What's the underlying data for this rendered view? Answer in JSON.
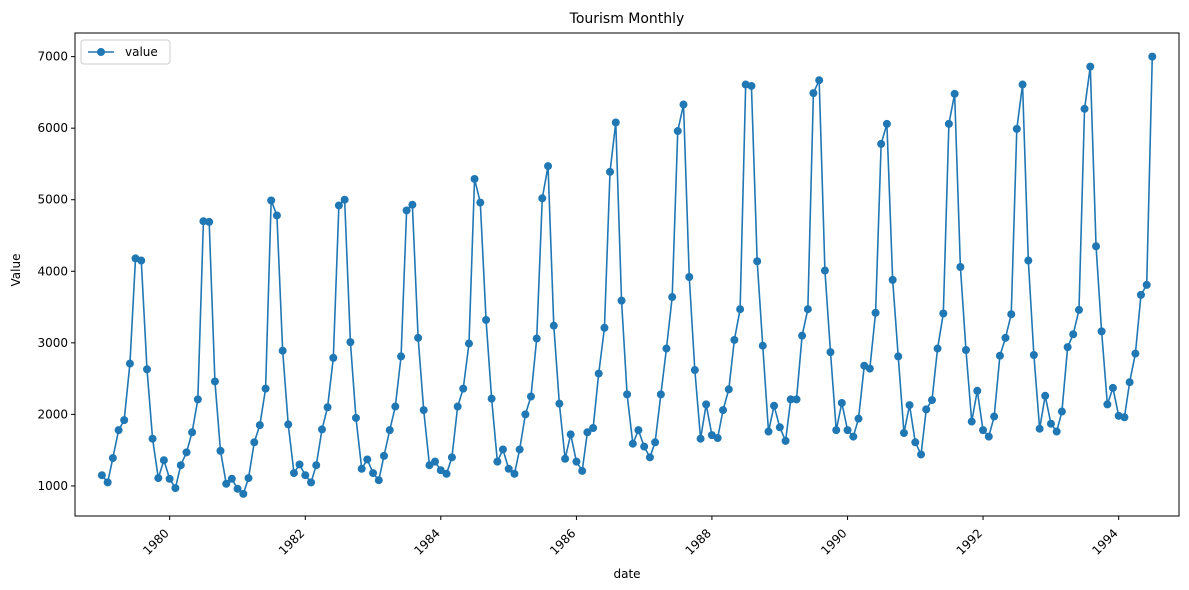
{
  "chart_data": {
    "type": "line",
    "title": "Tourism Monthly",
    "xlabel": "date",
    "ylabel": "Value",
    "x_start": "1979-01",
    "x_frequency": "monthly",
    "xlim": [
      "1978-08-09",
      "1994-11-22"
    ],
    "ylim": [
      580,
      7330
    ],
    "xticks": [
      1980,
      1982,
      1984,
      1986,
      1988,
      1990,
      1992,
      1994
    ],
    "yticks": [
      1000,
      2000,
      3000,
      4000,
      5000,
      6000,
      7000
    ],
    "legend": {
      "placement": "top-left",
      "entries": [
        "value"
      ]
    },
    "grid": false,
    "series": [
      {
        "name": "value",
        "color": "#1f77b4",
        "marker": "circle",
        "values": [
          1150,
          1050,
          1390,
          1780,
          1920,
          2710,
          4180,
          4150,
          2630,
          1660,
          1110,
          1360,
          1100,
          970,
          1290,
          1470,
          1750,
          2210,
          4700,
          4690,
          2460,
          1490,
          1030,
          1100,
          960,
          890,
          1110,
          1610,
          1850,
          2360,
          4990,
          4780,
          2890,
          1860,
          1180,
          1300,
          1150,
          1050,
          1290,
          1790,
          2100,
          2790,
          4920,
          5000,
          3010,
          1950,
          1240,
          1370,
          1180,
          1080,
          1420,
          1780,
          2110,
          2810,
          4850,
          4930,
          3070,
          2060,
          1290,
          1340,
          1220,
          1170,
          1400,
          2110,
          2360,
          2990,
          5290,
          4960,
          3320,
          2220,
          1340,
          1510,
          1240,
          1170,
          1510,
          2000,
          2250,
          3060,
          5020,
          5470,
          3240,
          2150,
          1380,
          1720,
          1340,
          1210,
          1750,
          1810,
          2570,
          3210,
          5390,
          6080,
          3590,
          2280,
          1590,
          1780,
          1550,
          1400,
          1610,
          2280,
          2920,
          3640,
          5960,
          6330,
          3920,
          2620,
          1660,
          2140,
          1710,
          1670,
          2060,
          2350,
          3040,
          3470,
          6610,
          6590,
          4140,
          2960,
          1760,
          2120,
          1820,
          1630,
          2210,
          2210,
          3100,
          3470,
          6490,
          6670,
          4010,
          2870,
          1780,
          2160,
          1780,
          1690,
          1940,
          2680,
          2640,
          3420,
          5780,
          6060,
          3880,
          2810,
          1740,
          2130,
          1610,
          1440,
          2070,
          2200,
          2920,
          3410,
          6060,
          6480,
          4060,
          2900,
          1900,
          2330,
          1780,
          1690,
          1970,
          2820,
          3070,
          3400,
          5990,
          6610,
          4150,
          2830,
          1800,
          2260,
          1870,
          1760,
          2040,
          2940,
          3120,
          3460,
          6270,
          6860,
          4350,
          3160,
          2140,
          2370,
          1980,
          1960,
          2450,
          2850,
          3670,
          3810,
          7000
        ]
      }
    ]
  }
}
